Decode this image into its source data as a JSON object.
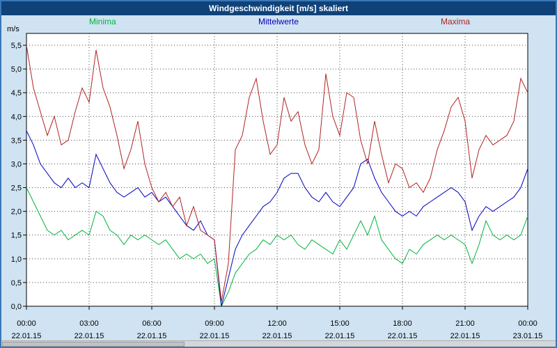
{
  "header": {
    "title": "Windgeschwindigkeit [m/s] skaliert"
  },
  "colors": {
    "titlebar_bg": "#0f4279",
    "page_bg": "#cfe3f2",
    "page_border": "#3b78b5",
    "minima": "#00b33c",
    "mittelwerte": "#0000bf",
    "maxima": "#b22222"
  },
  "chart_data": {
    "type": "line",
    "title": "Windgeschwindigkeit [m/s] skaliert",
    "ylabel": "m/s",
    "ylim": [
      0,
      5.75
    ],
    "yticks": [
      0.0,
      0.5,
      1.0,
      1.5,
      2.0,
      2.5,
      3.0,
      3.5,
      4.0,
      4.5,
      5.0,
      5.5
    ],
    "ytick_labels": [
      "0,0",
      "0,5",
      "1,0",
      "1,5",
      "2,0",
      "2,5",
      "3,0",
      "3,5",
      "4,0",
      "4,5",
      "5,0",
      "5,5"
    ],
    "grid": "dotted",
    "legend_position": "top",
    "interval_minutes": 20,
    "xticks": [
      {
        "time": "00:00",
        "date": "22.01.15"
      },
      {
        "time": "03:00",
        "date": "22.01.15"
      },
      {
        "time": "06:00",
        "date": "22.01.15"
      },
      {
        "time": "09:00",
        "date": "22.01.15"
      },
      {
        "time": "12:00",
        "date": "22.01.15"
      },
      {
        "time": "15:00",
        "date": "22.01.15"
      },
      {
        "time": "18:00",
        "date": "22.01.15"
      },
      {
        "time": "21:00",
        "date": "22.01.15"
      },
      {
        "time": "00:00",
        "date": "23.01.15"
      }
    ],
    "series": [
      {
        "name": "Minima",
        "color": "#00b33c",
        "values": [
          2.5,
          2.2,
          1.9,
          1.6,
          1.5,
          1.6,
          1.4,
          1.5,
          1.6,
          1.5,
          2.0,
          1.9,
          1.6,
          1.5,
          1.3,
          1.5,
          1.4,
          1.5,
          1.4,
          1.3,
          1.4,
          1.2,
          1.0,
          1.1,
          1.0,
          1.1,
          0.9,
          1.0,
          0.0,
          0.3,
          0.7,
          0.9,
          1.1,
          1.2,
          1.4,
          1.3,
          1.5,
          1.4,
          1.5,
          1.3,
          1.2,
          1.4,
          1.3,
          1.2,
          1.1,
          1.4,
          1.2,
          1.5,
          1.8,
          1.5,
          1.9,
          1.4,
          1.2,
          1.0,
          0.9,
          1.2,
          1.1,
          1.3,
          1.4,
          1.5,
          1.4,
          1.5,
          1.4,
          1.3,
          0.9,
          1.3,
          1.8,
          1.5,
          1.4,
          1.5,
          1.4,
          1.5,
          1.9
        ]
      },
      {
        "name": "Mittelwerte",
        "color": "#0000bf",
        "values": [
          3.7,
          3.4,
          3.0,
          2.8,
          2.6,
          2.5,
          2.7,
          2.5,
          2.6,
          2.5,
          3.2,
          2.9,
          2.6,
          2.4,
          2.3,
          2.4,
          2.5,
          2.3,
          2.4,
          2.2,
          2.3,
          2.1,
          1.9,
          1.7,
          1.6,
          1.8,
          1.5,
          1.4,
          0.0,
          0.6,
          1.2,
          1.5,
          1.7,
          1.9,
          2.1,
          2.2,
          2.4,
          2.7,
          2.8,
          2.8,
          2.5,
          2.3,
          2.2,
          2.4,
          2.2,
          2.1,
          2.3,
          2.5,
          3.0,
          3.1,
          2.7,
          2.4,
          2.2,
          2.0,
          1.9,
          2.0,
          1.9,
          2.1,
          2.2,
          2.3,
          2.4,
          2.5,
          2.4,
          2.2,
          1.6,
          1.9,
          2.1,
          2.0,
          2.1,
          2.2,
          2.3,
          2.5,
          2.9
        ]
      },
      {
        "name": "Maxima",
        "color": "#b22222",
        "values": [
          5.5,
          4.6,
          4.1,
          3.6,
          4.0,
          3.4,
          3.5,
          4.1,
          4.6,
          4.3,
          5.4,
          4.6,
          4.2,
          3.6,
          2.9,
          3.3,
          3.9,
          3.0,
          2.5,
          2.2,
          2.4,
          2.1,
          2.3,
          1.7,
          2.1,
          1.6,
          1.5,
          1.4,
          0.1,
          0.9,
          3.3,
          3.6,
          4.4,
          4.8,
          3.9,
          3.2,
          3.4,
          4.4,
          3.9,
          4.1,
          3.4,
          3.0,
          3.3,
          4.9,
          4.0,
          3.6,
          4.5,
          4.4,
          3.5,
          3.0,
          3.9,
          3.2,
          2.6,
          3.0,
          2.9,
          2.5,
          2.6,
          2.4,
          2.7,
          3.3,
          3.7,
          4.2,
          4.4,
          3.9,
          2.7,
          3.3,
          3.6,
          3.4,
          3.5,
          3.6,
          3.9,
          4.8,
          4.5
        ]
      }
    ]
  }
}
